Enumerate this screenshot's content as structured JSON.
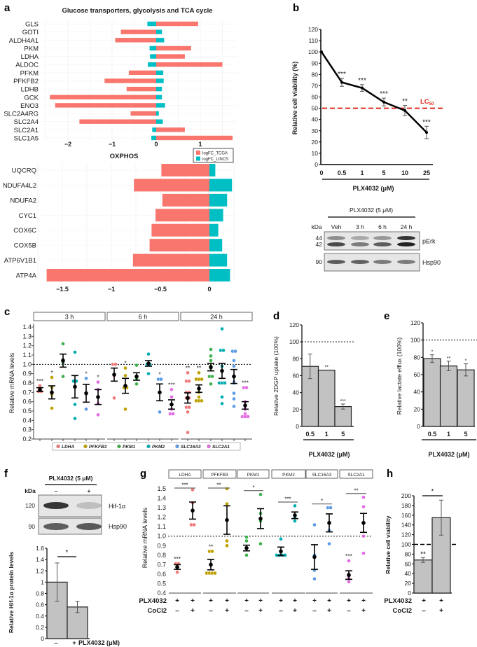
{
  "figure_labels": [
    "a",
    "b",
    "c",
    "d",
    "e",
    "f",
    "g",
    "h"
  ],
  "chart_data": [
    {
      "type": "bar",
      "orientation": "horizontal",
      "title": "Glucose transporters, glycolysis and TCA cycle",
      "categories": [
        "GLS",
        "GOTI",
        "ALDH4A1",
        "PKM",
        "LDHA",
        "ALDOC",
        "PFKM",
        "PFKFB2",
        "LDHB",
        "GCK",
        "ENO3",
        "SLC2A4RG",
        "SLC2A4",
        "SLC2A1",
        "SLC1A5"
      ],
      "series": [
        {
          "name": "logFC_TCGA",
          "color": "#F8766D",
          "values": [
            0.95,
            -0.8,
            -0.93,
            0.79,
            0.65,
            1.5,
            -0.62,
            -1.17,
            -0.67,
            -2.41,
            -2.29,
            -0.58,
            -1.74,
            0.65,
            1.73
          ]
        },
        {
          "name": "logFC_LINCS",
          "color": "#00BFC4",
          "values": [
            -0.2,
            0.13,
            0.18,
            -0.15,
            -0.14,
            -0.19,
            0.16,
            0.17,
            0.13,
            0.13,
            0.2,
            0.06,
            0.15,
            -0.09,
            -0.11
          ]
        }
      ],
      "xticks": [
        "−2",
        "−1",
        "0",
        "1"
      ],
      "grid": true,
      "legend": "bottom-right"
    },
    {
      "type": "bar",
      "orientation": "horizontal",
      "title": "OXPHOS",
      "categories": [
        "UQCRQ",
        "NDUFA4L2",
        "NDUFA2",
        "CYC1",
        "COX6C",
        "COX5B",
        "ATP6V1B1",
        "ATP4A"
      ],
      "series": [
        {
          "color": "#F8766D",
          "values": [
            -0.49,
            -0.77,
            -0.48,
            -0.55,
            -0.59,
            -0.61,
            -0.78,
            -1.66
          ]
        },
        {
          "color": "#00BFC4",
          "values": [
            0.06,
            0.23,
            0.18,
            0.14,
            0.09,
            0.13,
            0.18,
            0.21
          ]
        }
      ],
      "xticks": [
        "−1.5",
        "−1",
        "−0.5",
        "0"
      ],
      "grid": true
    },
    {
      "type": "line",
      "x": [
        "0",
        "0.5",
        "1",
        "5",
        "10",
        "25"
      ],
      "y": [
        100,
        73,
        68,
        55.5,
        48,
        28.5
      ],
      "error": [
        0,
        3.5,
        3,
        3.5,
        4.5,
        5.5
      ],
      "significance": [
        "",
        "***",
        "***",
        "***",
        "**",
        "***"
      ],
      "xlabel": "PLX4032 (μM)",
      "ylabel": "Relative cell viability (%)",
      "ylim": [
        0,
        120
      ],
      "yticks": [
        0,
        10,
        20,
        30,
        40,
        50,
        60,
        70,
        80,
        90,
        100,
        110,
        120
      ],
      "reference_line": {
        "y": 50,
        "label": "LC",
        "label_sub": "50",
        "color": "#E02A20"
      }
    },
    {
      "type": "scatter",
      "facets": [
        "3 h",
        "6 h",
        "24 h"
      ],
      "genes": [
        "LDHA",
        "PFKFB3",
        "PKM1",
        "PKM2",
        "SLC16A3",
        "SLC2A1"
      ],
      "colors": [
        "#F07878",
        "#BFA100",
        "#3DB04B",
        "#00ADB0",
        "#5B9BE8",
        "#E46BE4"
      ],
      "ylabel": "Relative mRNA levels",
      "ylim": [
        0.2,
        1.45
      ],
      "yticks": [
        "0.2",
        "0.3",
        "0.4",
        "0.5",
        "0.6",
        "0.7",
        "0.8",
        "0.9",
        "1.0",
        "1.1",
        "1.2",
        "1.3",
        "1.4"
      ],
      "reference_line": 1.0,
      "groups": [
        [
          {
            "points": [
              0.77,
              0.72,
              0.71,
              0.71
            ],
            "mean": 0.73,
            "sem": 0.02,
            "significance": "***"
          },
          {
            "points": [
              0.86,
              0.75,
              0.68,
              0.53
            ],
            "mean": 0.7,
            "sem": 0.07,
            "significance": "*"
          },
          {
            "points": [
              1.22,
              1.05,
              1.02,
              0.87
            ],
            "mean": 1.04,
            "sem": 0.07,
            "significance": ""
          },
          {
            "points": [
              1.13,
              0.82,
              0.82,
              0.57,
              0.42
            ],
            "mean": 0.76,
            "sem": 0.12,
            "significance": ""
          },
          {
            "points": [
              0.85,
              0.69,
              0.52
            ],
            "mean": 0.69,
            "sem": 0.095,
            "significance": "*"
          },
          {
            "points": [
              0.81,
              0.73,
              0.58,
              0.46
            ],
            "mean": 0.65,
            "sem": 0.08,
            "significance": "*"
          }
        ],
        [
          {
            "points": [
              1.0,
              1.0,
              0.88,
              0.64
            ],
            "mean": 0.89,
            "sem": 0.07,
            "significance": ""
          },
          {
            "points": [
              0.96,
              0.88,
              0.75,
              0.75,
              0.52
            ],
            "mean": 0.77,
            "sem": 0.08,
            "significance": "*"
          },
          {
            "points": [
              0.99,
              0.86,
              0.85,
              0.79
            ],
            "mean": 0.87,
            "sem": 0.04,
            "significance": ""
          },
          {
            "points": [
              1.11,
              1.0,
              1.0,
              0.9
            ],
            "mean": 1.01,
            "sem": 0.03,
            "significance": ""
          },
          {
            "points": [
              0.84,
              0.84,
              0.49
            ],
            "mean": 0.7,
            "sem": 0.09,
            "significance": "*"
          },
          {
            "points": [
              0.73,
              0.65,
              0.52,
              0.47,
              0.47
            ],
            "mean": 0.57,
            "sem": 0.05,
            "significance": "***"
          }
        ],
        [
          {
            "points": [
              0.91,
              0.82,
              0.82,
              0.7,
              0.7,
              0.64,
              0.64,
              0.54,
              0.54,
              0.49,
              0.27
            ],
            "mean": 0.64,
            "sem": 0.055,
            "significance": "**"
          },
          {
            "points": [
              0.91,
              0.84,
              0.84,
              0.84,
              0.74,
              0.7,
              0.65,
              0.61,
              0.61,
              0.61
            ],
            "mean": 0.74,
            "sem": 0.04,
            "significance": "**"
          },
          {
            "points": [
              1.16,
              1.09,
              1.04,
              0.98,
              0.96,
              0.87,
              0.87,
              0.79
            ],
            "mean": 0.97,
            "sem": 0.04,
            "significance": ""
          },
          {
            "points": [
              1.38,
              1.15,
              1.15,
              0.98,
              0.8,
              0.8,
              0.8,
              0.65,
              0.58
            ],
            "mean": 0.93,
            "sem": 0.08,
            "significance": ""
          },
          {
            "points": [
              1.14,
              1.14,
              1.04,
              0.98,
              0.81,
              0.8,
              0.69,
              0.63,
              0.55
            ],
            "mean": 0.87,
            "sem": 0.075,
            "significance": ""
          },
          {
            "points": [
              0.75,
              0.75,
              0.6,
              0.55,
              0.52,
              0.47,
              0.44,
              0.44,
              0.44
            ],
            "mean": 0.56,
            "sem": 0.04,
            "significance": "***"
          }
        ]
      ]
    },
    {
      "type": "bar",
      "categories": [
        "0.5",
        "1",
        "5"
      ],
      "values": [
        71,
        66.5,
        23.5
      ],
      "error": [
        14.5,
        0,
        3
      ],
      "significance": [
        "",
        "**",
        "***"
      ],
      "xlabel": "PLX4032 (μM)",
      "ylabel": "Relative 2DGP uptake (100%)",
      "ylim": [
        0,
        120
      ],
      "yticks": [
        0,
        20,
        40,
        60,
        80,
        100,
        120
      ],
      "reference_line": 100
    },
    {
      "type": "bar",
      "categories": [
        "0.5",
        "1",
        "5"
      ],
      "values": [
        78.5,
        70,
        65.5
      ],
      "error": [
        4.5,
        5.5,
        7
      ],
      "significance": [
        "*",
        "**",
        "*"
      ],
      "xlabel": "PLX4032 (μM)",
      "ylabel": "Relative lactate efflux (100%)",
      "ylim": [
        0,
        120
      ],
      "yticks": [
        0,
        20,
        40,
        60,
        80,
        100,
        120
      ],
      "reference_line": 100
    },
    {
      "type": "bar",
      "categories": [
        "–",
        "+"
      ],
      "values": [
        1.0,
        0.56
      ],
      "error": [
        0.34,
        0.1
      ],
      "xlabel": "PLX4032 (μM)",
      "ylabel": "Relative Hif-1α protein levels",
      "ylim": [
        0,
        1.6
      ],
      "yticks": [
        "0",
        "0.2",
        "0.4",
        "0.6",
        "0.8",
        "1",
        "1.2",
        "1.4",
        "1.6"
      ],
      "comparison_significance": "*"
    },
    {
      "type": "scatter",
      "facets": [
        "LDHA",
        "PFKFB3",
        "PKM1",
        "PKM2",
        "SLC16A3",
        "SLC2A1"
      ],
      "colors": [
        "#F07878",
        "#BFA100",
        "#3DB04B",
        "#00ADB0",
        "#5B9BE8",
        "#E46BE4"
      ],
      "ylabel": "Relative mRNA levels",
      "ylim": [
        0.4,
        1.55
      ],
      "yticks": [
        "0.4",
        "0.5",
        "0.6",
        "0.7",
        "0.8",
        "0.9",
        "1.0",
        "1.1",
        "1.2",
        "1.3",
        "1.4",
        "1.5"
      ],
      "reference_line": 1.0,
      "row_labels": [
        "PLX4032",
        "CoCl2"
      ],
      "conditions": [
        [
          "+",
          "–"
        ],
        [
          "+",
          "+"
        ]
      ],
      "groups": [
        {
          "comparison_significance": "***",
          "values": [
            {
              "points": [
                0.71,
                0.71,
                0.67,
                0.62
              ],
              "mean": 0.675,
              "sem": 0.025,
              "significance": "***"
            },
            {
              "points": [
                1.49,
                1.35,
                1.12,
                1.12
              ],
              "mean": 1.27,
              "sem": 0.09,
              "significance": ""
            }
          ]
        },
        {
          "comparison_significance": "**",
          "values": [
            {
              "points": [
                0.84,
                0.84,
                0.61,
                0.61,
                0.61,
                0.61
              ],
              "mean": 0.7,
              "sem": 0.055,
              "significance": "**"
            },
            {
              "points": [
                1.5,
                1.34,
                0.95,
                0.9
              ],
              "mean": 1.17,
              "sem": 0.15,
              "significance": ""
            }
          ]
        },
        {
          "comparison_significance": "*",
          "values": [
            {
              "points": [
                0.99,
                0.95,
                0.87,
                0.8
              ],
              "mean": 0.875,
              "sem": 0.03,
              "significance": ""
            },
            {
              "points": [
                1.44,
                1.24,
                1.16,
                0.92
              ],
              "mean": 1.185,
              "sem": 0.105,
              "significance": ""
            }
          ]
        },
        {
          "comparison_significance": "***",
          "values": [
            {
              "points": [
                0.97,
                0.8,
                0.8,
                0.8,
                0.8
              ],
              "mean": 0.84,
              "sem": 0.045,
              "significance": ""
            },
            {
              "points": [
                1.32,
                1.21,
                1.2,
                1.16
              ],
              "mean": 1.22,
              "sem": 0.035,
              "significance": ""
            }
          ]
        },
        {
          "comparison_significance": "*",
          "values": [
            {
              "points": [
                1.12,
                0.8,
                0.64,
                0.55
              ],
              "mean": 0.78,
              "sem": 0.13,
              "significance": ""
            },
            {
              "points": [
                1.3,
                1.3,
                1.06,
                0.92
              ],
              "mean": 1.14,
              "sem": 0.095,
              "significance": ""
            }
          ]
        },
        {
          "comparison_significance": "**",
          "values": [
            {
              "points": [
                0.74,
                0.6,
                0.58,
                0.55,
                0.52
              ],
              "mean": 0.59,
              "sem": 0.045,
              "significance": "***"
            },
            {
              "points": [
                1.41,
                1.31,
                1.0,
                0.82
              ],
              "mean": 1.14,
              "sem": 0.1,
              "significance": ""
            }
          ]
        }
      ]
    },
    {
      "type": "bar",
      "values": [
        68,
        155
      ],
      "error": [
        5,
        36
      ],
      "significance": [
        "**",
        ""
      ],
      "comparison_significance": "*",
      "ylabel": "Relative cell viability",
      "ylim": [
        0,
        200
      ],
      "yticks": [
        0,
        20,
        40,
        60,
        80,
        100,
        120,
        140,
        160,
        180,
        200
      ],
      "reference_line": 100,
      "row_labels": [
        "PLX4032",
        "CoCl2"
      ],
      "conditions": [
        [
          "+",
          "–"
        ],
        [
          "+",
          "+"
        ]
      ]
    }
  ],
  "western_blots": [
    {
      "treatment": "PLX4032 (5 μM)",
      "kda_label": "kDa",
      "lanes": [
        "Veh",
        "3 h",
        "6 h",
        "24 h"
      ],
      "rows": [
        {
          "protein": "pErk",
          "markers": [
            "44",
            "42"
          ],
          "band_intensity": [
            [
              0.45,
              0.3,
              0.4,
              0.9
            ],
            [
              0.8,
              0.55,
              0.7,
              1.0
            ]
          ]
        },
        {
          "protein": "Hsp90",
          "markers": [
            "90"
          ],
          "band_intensity": [
            [
              0.7,
              0.68,
              0.55,
              0.55
            ]
          ]
        }
      ]
    },
    {
      "treatment": "PLX4032 (5 μM)",
      "kda_label": "kDa",
      "lanes": [
        "–",
        "+"
      ],
      "rows": [
        {
          "protein": "Hif-1α",
          "markers": [
            "120"
          ],
          "band_intensity": [
            [
              0.9,
              0.2
            ]
          ]
        },
        {
          "protein": "Hsp90",
          "markers": [
            "90"
          ],
          "band_intensity": [
            [
              0.7,
              0.72
            ]
          ]
        }
      ]
    }
  ]
}
